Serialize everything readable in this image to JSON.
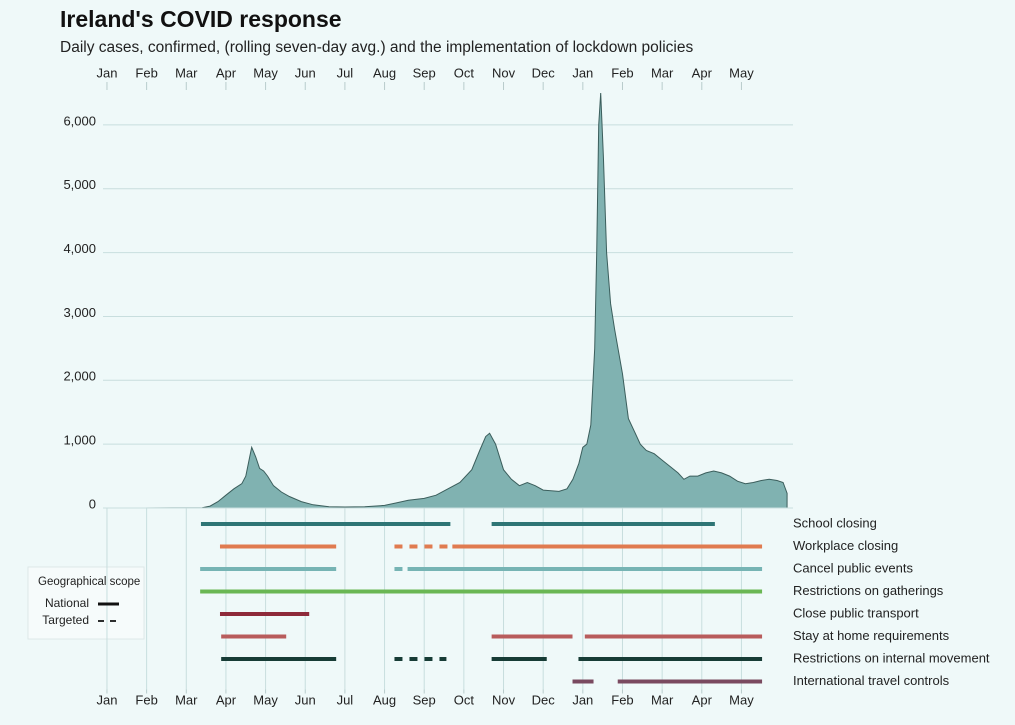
{
  "chart_data": {
    "type": "area",
    "title": "Ireland's COVID response",
    "subtitle": "Daily cases, confirmed, (rolling seven-day avg.) and the implementation of lockdown policies",
    "fill_color": "#80b2b1",
    "line_color": "#3b5e5c",
    "grid": true,
    "xlim": [
      -0.1,
      17.3
    ],
    "xticks": [
      {
        "value": 0,
        "label": "Jan"
      },
      {
        "value": 1,
        "label": "Feb"
      },
      {
        "value": 2,
        "label": "Mar"
      },
      {
        "value": 3,
        "label": "Apr"
      },
      {
        "value": 4,
        "label": "May"
      },
      {
        "value": 5,
        "label": "Jun"
      },
      {
        "value": 6,
        "label": "Jul"
      },
      {
        "value": 7,
        "label": "Aug"
      },
      {
        "value": 8,
        "label": "Sep"
      },
      {
        "value": 9,
        "label": "Oct"
      },
      {
        "value": 10,
        "label": "Nov"
      },
      {
        "value": 11,
        "label": "Dec"
      },
      {
        "value": 12,
        "label": "Jan"
      },
      {
        "value": 13,
        "label": "Feb"
      },
      {
        "value": 14,
        "label": "Mar"
      },
      {
        "value": 15,
        "label": "Apr"
      },
      {
        "value": 16,
        "label": "May"
      }
    ],
    "ylim": [
      0,
      6500
    ],
    "yticks": [
      0,
      {
        "value": 1000,
        "label": "1,000"
      },
      {
        "value": 2000,
        "label": "2,000"
      },
      {
        "value": 3000,
        "label": "3,000"
      },
      {
        "value": 4000,
        "label": "4,000"
      },
      {
        "value": 5000,
        "label": "5,000"
      },
      {
        "value": 6000,
        "label": "6,000"
      }
    ],
    "x": [
      0.9,
      2.4,
      2.6,
      2.8,
      3.0,
      3.2,
      3.4,
      3.5,
      3.6,
      3.65,
      3.75,
      3.85,
      3.95,
      4.05,
      4.2,
      4.4,
      4.6,
      4.9,
      5.2,
      5.6,
      6.0,
      6.5,
      7.0,
      7.3,
      7.6,
      8.0,
      8.3,
      8.6,
      8.9,
      9.2,
      9.4,
      9.55,
      9.65,
      9.8,
      10.0,
      10.2,
      10.4,
      10.6,
      10.8,
      11.0,
      11.2,
      11.4,
      11.6,
      11.75,
      11.9,
      12.0,
      12.1,
      12.2,
      12.3,
      12.35,
      12.4,
      12.45,
      12.52,
      12.6,
      12.7,
      12.8,
      13.0,
      13.15,
      13.3,
      13.45,
      13.6,
      13.8,
      14.0,
      14.2,
      14.4,
      14.55,
      14.7,
      14.9,
      15.1,
      15.3,
      15.5,
      15.7,
      15.9,
      16.1,
      16.3,
      16.5,
      16.7,
      16.9,
      17.05,
      17.15
    ],
    "values": [
      0,
      5,
      30,
      100,
      200,
      300,
      380,
      500,
      800,
      950,
      800,
      620,
      580,
      500,
      350,
      250,
      180,
      100,
      50,
      20,
      15,
      20,
      40,
      80,
      120,
      150,
      200,
      300,
      400,
      600,
      900,
      1120,
      1170,
      1000,
      600,
      450,
      350,
      400,
      350,
      280,
      270,
      260,
      300,
      450,
      700,
      950,
      1000,
      1300,
      2500,
      4000,
      6000,
      6500,
      5500,
      4000,
      3200,
      2800,
      2100,
      1400,
      1200,
      1000,
      900,
      850,
      750,
      650,
      550,
      450,
      500,
      500,
      550,
      580,
      550,
      500,
      420,
      380,
      400,
      430,
      450,
      430,
      400,
      230
    ],
    "legend": {
      "title": "Geographical scope",
      "items": [
        {
          "label": "National",
          "dashed": false
        },
        {
          "label": "Targeted",
          "dashed": true
        }
      ]
    },
    "policies": [
      {
        "name": "School closing",
        "color": "#2e7575",
        "segments": [
          {
            "start": 2.37,
            "end": 8.66,
            "targeted": false
          },
          {
            "start": 9.7,
            "end": 15.33,
            "targeted": false
          }
        ]
      },
      {
        "name": "Workplace closing",
        "color": "#e07b50",
        "segments": [
          {
            "start": 2.85,
            "end": 5.78,
            "targeted": false
          },
          {
            "start": 7.25,
            "end": 8.66,
            "targeted": true
          },
          {
            "start": 8.71,
            "end": 16.52,
            "targeted": false
          }
        ]
      },
      {
        "name": "Cancel public events",
        "color": "#76b4b4",
        "segments": [
          {
            "start": 2.35,
            "end": 5.78,
            "targeted": false
          },
          {
            "start": 7.25,
            "end": 7.5,
            "targeted": true
          },
          {
            "start": 7.58,
            "end": 16.52,
            "targeted": false
          }
        ]
      },
      {
        "name": "Restrictions on gatherings",
        "color": "#6ab754",
        "segments": [
          {
            "start": 2.35,
            "end": 16.52,
            "targeted": false
          }
        ]
      },
      {
        "name": "Close public transport",
        "color": "#8e2a3a",
        "segments": [
          {
            "start": 2.85,
            "end": 5.1,
            "targeted": false
          }
        ]
      },
      {
        "name": "Stay at home requirements",
        "color": "#b85c5c",
        "segments": [
          {
            "start": 2.88,
            "end": 4.52,
            "targeted": false
          },
          {
            "start": 9.7,
            "end": 11.74,
            "targeted": false
          },
          {
            "start": 12.05,
            "end": 16.52,
            "targeted": false
          }
        ]
      },
      {
        "name": "Restrictions on internal movement",
        "color": "#173c36",
        "segments": [
          {
            "start": 2.88,
            "end": 5.78,
            "targeted": false
          },
          {
            "start": 7.25,
            "end": 8.56,
            "targeted": true
          },
          {
            "start": 9.7,
            "end": 11.09,
            "targeted": false
          },
          {
            "start": 11.89,
            "end": 16.52,
            "targeted": false
          }
        ]
      },
      {
        "name": "International travel controls",
        "color": "#7a4a60",
        "segments": [
          {
            "start": 11.74,
            "end": 12.27,
            "targeted": false
          },
          {
            "start": 12.88,
            "end": 16.52,
            "targeted": false
          }
        ]
      }
    ]
  }
}
